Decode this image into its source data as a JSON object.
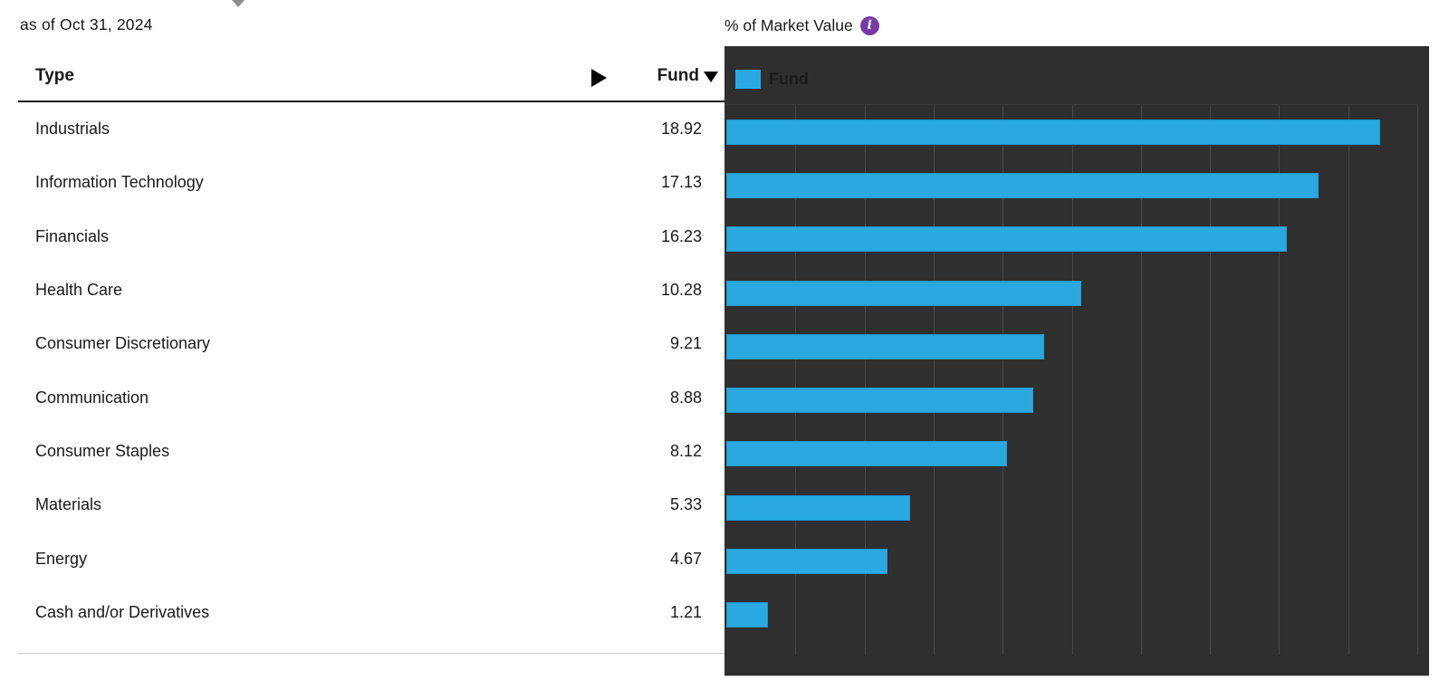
{
  "page": {
    "as_of_label": "as of Oct 31, 2024"
  },
  "icons": {
    "truncated_caret": "▼",
    "expand_columns": "▶",
    "sort_descending": "▼",
    "info": "i"
  },
  "table": {
    "columns": {
      "type": "Type",
      "fund": "Fund"
    },
    "sort_column": "Fund",
    "sort_direction": "descending",
    "rows": [
      {
        "type": "Industrials",
        "fund": "18.92"
      },
      {
        "type": "Information Technology",
        "fund": "17.13"
      },
      {
        "type": "Financials",
        "fund": "16.23"
      },
      {
        "type": "Health Care",
        "fund": "10.28"
      },
      {
        "type": "Consumer Discretionary",
        "fund": "9.21"
      },
      {
        "type": "Communication",
        "fund": "8.88"
      },
      {
        "type": "Consumer Staples",
        "fund": "8.12"
      },
      {
        "type": "Materials",
        "fund": "5.33"
      },
      {
        "type": "Energy",
        "fund": "4.67"
      },
      {
        "type": "Cash and/or Derivatives",
        "fund": "1.21"
      }
    ]
  },
  "chart": {
    "title": "% of Market Value",
    "legend_label": "Fund"
  },
  "chart_data": {
    "type": "bar",
    "orientation": "horizontal",
    "title": "% of Market Value",
    "categories": [
      "Industrials",
      "Information Technology",
      "Financials",
      "Health Care",
      "Consumer Discretionary",
      "Communication",
      "Consumer Staples",
      "Materials",
      "Energy",
      "Cash and/or Derivatives"
    ],
    "series": [
      {
        "name": "Fund",
        "values": [
          18.92,
          17.13,
          16.23,
          10.28,
          9.21,
          8.88,
          8.12,
          5.33,
          4.67,
          1.21
        ]
      }
    ],
    "xlim": [
      0,
      20
    ],
    "gridline_step": 2,
    "grid": true,
    "legend_position": "top-left",
    "bar_color": "#29a9e0",
    "plot_bg_color": "#2f2f2f",
    "gridline_color": "#474747"
  },
  "colors": {
    "bar_blue": "#29a9e0",
    "panel_bg": "#2f2f2f",
    "gridline": "#474747",
    "info_icon_purple": "#753ca5",
    "legend_text_dark": "#1c1c1c",
    "text": "#1a1a1a"
  }
}
